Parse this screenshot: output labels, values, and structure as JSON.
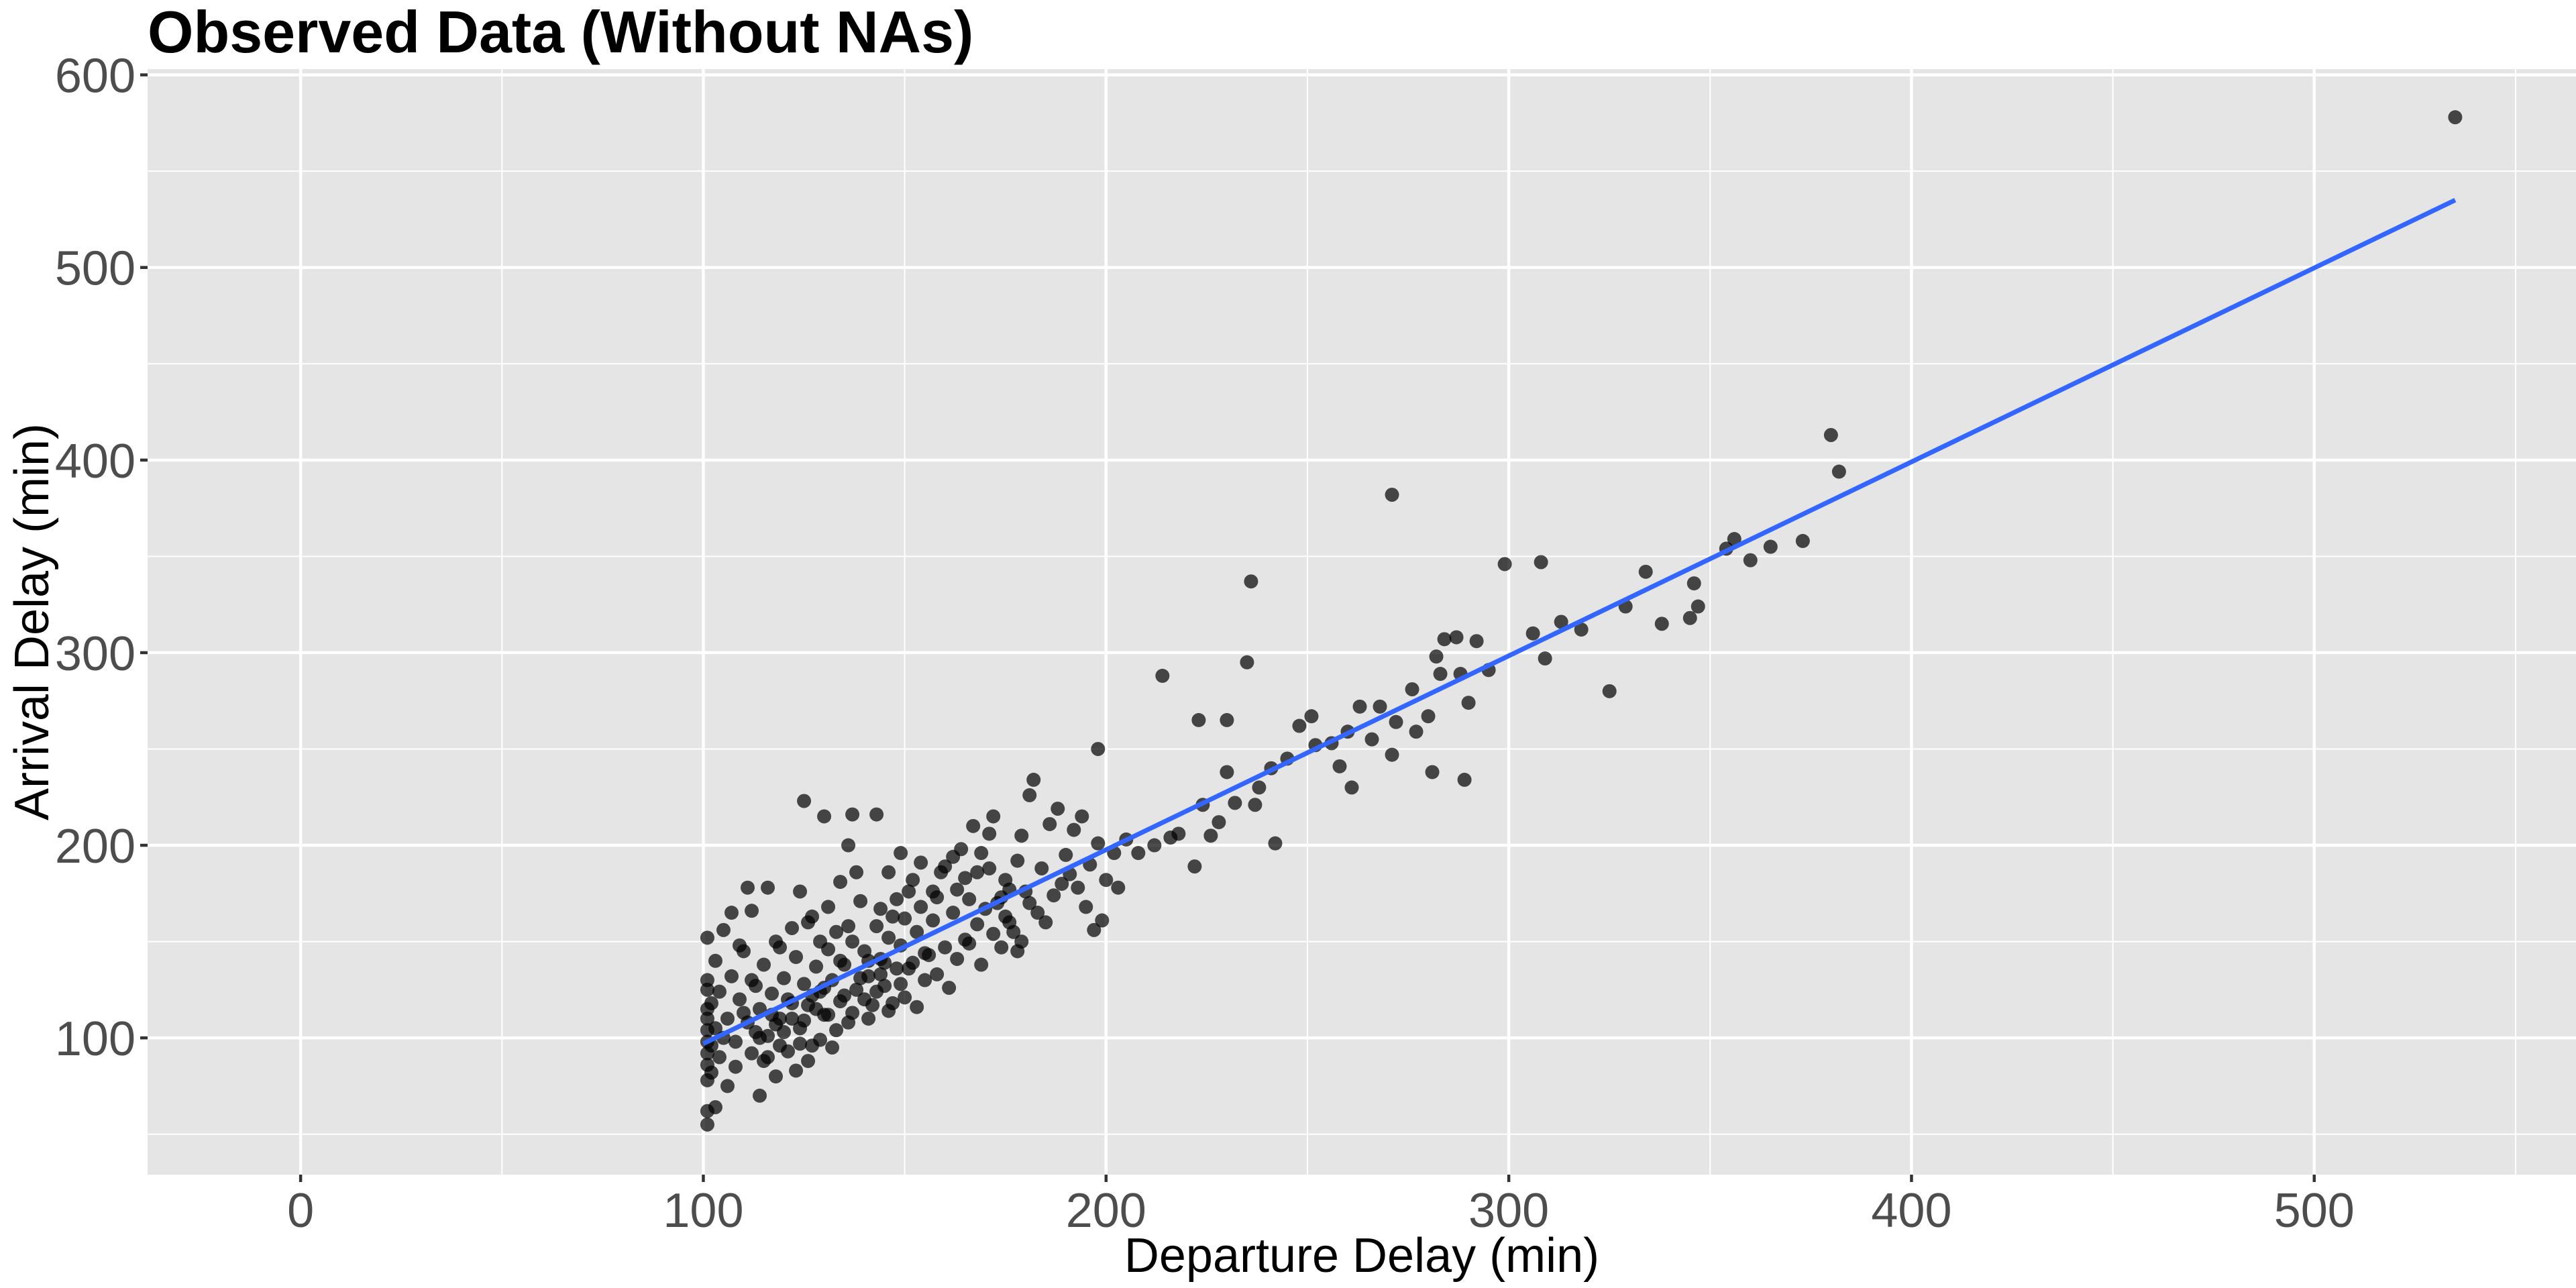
{
  "chart_data": {
    "type": "scatter",
    "title": "Observed Data (Without NAs)",
    "xlabel": "Departure Delay (min)",
    "ylabel": "Arrival Delay (min)",
    "xlim": [
      -38,
      565
    ],
    "ylim": [
      29,
      603
    ],
    "x_ticks": [
      0,
      100,
      200,
      300,
      400,
      500
    ],
    "y_ticks": [
      100,
      200,
      300,
      400,
      500,
      600
    ],
    "x_tick_labels": [
      "0",
      "100",
      "200",
      "300",
      "400",
      "500"
    ],
    "y_tick_labels": [
      "100",
      "200",
      "300",
      "400",
      "500",
      "600"
    ],
    "grid": true,
    "legend": "none",
    "point_color": "#000000",
    "point_alpha": 0.7,
    "fit_line": {
      "method": "linear",
      "color": "#3366FF",
      "x": [
        100,
        535
      ],
      "y": [
        97,
        535
      ]
    },
    "points": [
      [
        535,
        578
      ],
      [
        380,
        413
      ],
      [
        382,
        394
      ],
      [
        271,
        382
      ],
      [
        236,
        337
      ],
      [
        299,
        346
      ],
      [
        308,
        347
      ],
      [
        373,
        358
      ],
      [
        356,
        359
      ],
      [
        365,
        355
      ],
      [
        360,
        348
      ],
      [
        354,
        354
      ],
      [
        334,
        342
      ],
      [
        346,
        336
      ],
      [
        347,
        324
      ],
      [
        329,
        324
      ],
      [
        338,
        315
      ],
      [
        345,
        318
      ],
      [
        313,
        316
      ],
      [
        318,
        312
      ],
      [
        306,
        310
      ],
      [
        309,
        297
      ],
      [
        325,
        280
      ],
      [
        289,
        234
      ],
      [
        235,
        295
      ],
      [
        214,
        288
      ],
      [
        223,
        265
      ],
      [
        230,
        265
      ],
      [
        198,
        250
      ],
      [
        125,
        223
      ],
      [
        143,
        216
      ],
      [
        137,
        216
      ],
      [
        130,
        215
      ],
      [
        136,
        200
      ],
      [
        149,
        196
      ],
      [
        284,
        307
      ],
      [
        287,
        308
      ],
      [
        292,
        306
      ],
      [
        282,
        298
      ],
      [
        283,
        289
      ],
      [
        288,
        289
      ],
      [
        290,
        274
      ],
      [
        272,
        264
      ],
      [
        277,
        259
      ],
      [
        271,
        247
      ],
      [
        280,
        267
      ],
      [
        276,
        281
      ],
      [
        268,
        272
      ],
      [
        263,
        272
      ],
      [
        260,
        259
      ],
      [
        256,
        253
      ],
      [
        252,
        252
      ],
      [
        245,
        245
      ],
      [
        241,
        240
      ],
      [
        238,
        230
      ],
      [
        230,
        238
      ],
      [
        228,
        212
      ],
      [
        224,
        221
      ],
      [
        216,
        204
      ],
      [
        222,
        189
      ],
      [
        242,
        201
      ],
      [
        237,
        221
      ],
      [
        251,
        267
      ],
      [
        261,
        230
      ],
      [
        281,
        238
      ],
      [
        295,
        291
      ],
      [
        266,
        255
      ],
      [
        258,
        241
      ],
      [
        248,
        262
      ],
      [
        232,
        222
      ],
      [
        226,
        205
      ],
      [
        218,
        206
      ],
      [
        212,
        200
      ],
      [
        208,
        196
      ],
      [
        205,
        203
      ],
      [
        203,
        178
      ],
      [
        200,
        182
      ],
      [
        202,
        196
      ],
      [
        198,
        201
      ],
      [
        196,
        190
      ],
      [
        194,
        215
      ],
      [
        192,
        208
      ],
      [
        190,
        195
      ],
      [
        188,
        219
      ],
      [
        186,
        211
      ],
      [
        184,
        188
      ],
      [
        182,
        234
      ],
      [
        181,
        226
      ],
      [
        179,
        205
      ],
      [
        178,
        192
      ],
      [
        176,
        177
      ],
      [
        175,
        182
      ],
      [
        174,
        173
      ],
      [
        172,
        215
      ],
      [
        171,
        206
      ],
      [
        170,
        167
      ],
      [
        168,
        186
      ],
      [
        168,
        159
      ],
      [
        166,
        172
      ],
      [
        165,
        151
      ],
      [
        164,
        198
      ],
      [
        163,
        177
      ],
      [
        162,
        165
      ],
      [
        160,
        147
      ],
      [
        160,
        189
      ],
      [
        158,
        173
      ],
      [
        157,
        161
      ],
      [
        156,
        143
      ],
      [
        155,
        130
      ],
      [
        154,
        168
      ],
      [
        153,
        155
      ],
      [
        152,
        139
      ],
      [
        151,
        176
      ],
      [
        150,
        121
      ],
      [
        149,
        148
      ],
      [
        148,
        136
      ],
      [
        147,
        163
      ],
      [
        146,
        152
      ],
      [
        145,
        127
      ],
      [
        144,
        141
      ],
      [
        143,
        158
      ],
      [
        142,
        117
      ],
      [
        141,
        132
      ],
      [
        140,
        145
      ],
      [
        139,
        171
      ],
      [
        138,
        125
      ],
      [
        137,
        150
      ],
      [
        136,
        108
      ],
      [
        135,
        138
      ],
      [
        134,
        119
      ],
      [
        133,
        155
      ],
      [
        132,
        130
      ],
      [
        131,
        146
      ],
      [
        130,
        112
      ],
      [
        129,
        124
      ],
      [
        128,
        137
      ],
      [
        127,
        96
      ],
      [
        126,
        117
      ],
      [
        126,
        160
      ],
      [
        125,
        128
      ],
      [
        124,
        105
      ],
      [
        123,
        142
      ],
      [
        122,
        118
      ],
      [
        121,
        93
      ],
      [
        120,
        131
      ],
      [
        119,
        110
      ],
      [
        118,
        150
      ],
      [
        118,
        80
      ],
      [
        117,
        123
      ],
      [
        116,
        101
      ],
      [
        115,
        138
      ],
      [
        114,
        115
      ],
      [
        114,
        70
      ],
      [
        113,
        127
      ],
      [
        112,
        92
      ],
      [
        111,
        108
      ],
      [
        111,
        178
      ],
      [
        110,
        145
      ],
      [
        109,
        120
      ],
      [
        108,
        98
      ],
      [
        108,
        85
      ],
      [
        107,
        132
      ],
      [
        106,
        110
      ],
      [
        106,
        75
      ],
      [
        105,
        156
      ],
      [
        105,
        100
      ],
      [
        104,
        124
      ],
      [
        104,
        90
      ],
      [
        103,
        140
      ],
      [
        103,
        105
      ],
      [
        103,
        64
      ],
      [
        102,
        118
      ],
      [
        102,
        96
      ],
      [
        102,
        82
      ],
      [
        101,
        55
      ],
      [
        101,
        62
      ],
      [
        101,
        78
      ],
      [
        101,
        86
      ],
      [
        101,
        92
      ],
      [
        101,
        98
      ],
      [
        101,
        104
      ],
      [
        101,
        110
      ],
      [
        101,
        115
      ],
      [
        101,
        125
      ],
      [
        101,
        130
      ],
      [
        101,
        152
      ],
      [
        107,
        165
      ],
      [
        109,
        148
      ],
      [
        112,
        166
      ],
      [
        116,
        178
      ],
      [
        119,
        147
      ],
      [
        122,
        157
      ],
      [
        124,
        176
      ],
      [
        127,
        163
      ],
      [
        129,
        150
      ],
      [
        131,
        168
      ],
      [
        134,
        181
      ],
      [
        136,
        158
      ],
      [
        138,
        186
      ],
      [
        141,
        140
      ],
      [
        144,
        167
      ],
      [
        146,
        186
      ],
      [
        148,
        172
      ],
      [
        150,
        162
      ],
      [
        152,
        182
      ],
      [
        154,
        191
      ],
      [
        157,
        176
      ],
      [
        159,
        186
      ],
      [
        162,
        194
      ],
      [
        165,
        183
      ],
      [
        167,
        210
      ],
      [
        169,
        196
      ],
      [
        171,
        188
      ],
      [
        173,
        170
      ],
      [
        175,
        163
      ],
      [
        177,
        155
      ],
      [
        179,
        150
      ],
      [
        181,
        170
      ],
      [
        183,
        165
      ],
      [
        185,
        160
      ],
      [
        187,
        174
      ],
      [
        189,
        180
      ],
      [
        191,
        185
      ],
      [
        193,
        178
      ],
      [
        195,
        168
      ],
      [
        197,
        156
      ],
      [
        199,
        161
      ],
      [
        113,
        103
      ],
      [
        115,
        88
      ],
      [
        117,
        112
      ],
      [
        119,
        96
      ],
      [
        121,
        120
      ],
      [
        123,
        83
      ],
      [
        125,
        109
      ],
      [
        127,
        122
      ],
      [
        129,
        99
      ],
      [
        131,
        112
      ],
      [
        133,
        104
      ],
      [
        135,
        122
      ],
      [
        137,
        113
      ],
      [
        139,
        131
      ],
      [
        141,
        110
      ],
      [
        143,
        124
      ],
      [
        145,
        139
      ],
      [
        147,
        118
      ],
      [
        149,
        128
      ],
      [
        151,
        136
      ],
      [
        153,
        116
      ],
      [
        155,
        144
      ],
      [
        158,
        133
      ],
      [
        161,
        126
      ],
      [
        163,
        141
      ],
      [
        166,
        149
      ],
      [
        169,
        138
      ],
      [
        172,
        154
      ],
      [
        174,
        147
      ],
      [
        176,
        160
      ],
      [
        178,
        145
      ],
      [
        180,
        176
      ],
      [
        110,
        113
      ],
      [
        112,
        130
      ],
      [
        114,
        100
      ],
      [
        116,
        90
      ],
      [
        118,
        107
      ],
      [
        120,
        103
      ],
      [
        122,
        110
      ],
      [
        124,
        97
      ],
      [
        126,
        88
      ],
      [
        128,
        115
      ],
      [
        130,
        126
      ],
      [
        132,
        95
      ],
      [
        134,
        140
      ],
      [
        140,
        120
      ],
      [
        144,
        133
      ],
      [
        146,
        114
      ]
    ]
  }
}
